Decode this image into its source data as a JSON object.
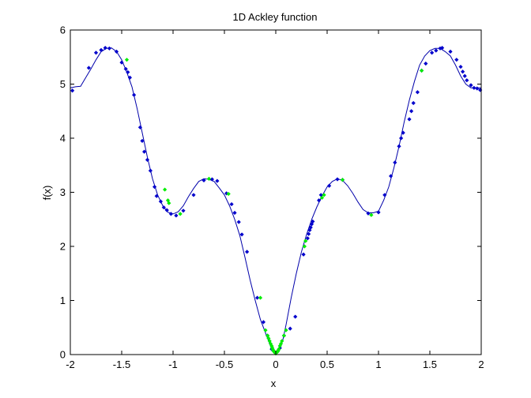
{
  "chart_data": {
    "type": "line",
    "title": "1D Ackley function",
    "xlabel": "x",
    "ylabel": "f(x)",
    "xlim": [
      -2,
      2
    ],
    "ylim": [
      0,
      6
    ],
    "xticks": [
      -2,
      -1.5,
      -1,
      -0.5,
      0,
      0.5,
      1,
      1.5,
      2
    ],
    "xtick_labels": [
      "-2",
      "-1.5",
      "-1",
      "-0.5",
      "0",
      "0.5",
      "1",
      "1.5",
      "2"
    ],
    "yticks": [
      0,
      1,
      2,
      3,
      4,
      5,
      6
    ],
    "ytick_labels": [
      "0",
      "1",
      "2",
      "3",
      "4",
      "5",
      "6"
    ],
    "grid": false,
    "colors": {
      "line": "#0000aa",
      "samples": "#0000cc",
      "selected": "#00ee00"
    },
    "series": [
      {
        "x": [
          -2,
          -1.95,
          -1.9,
          -1.85,
          -1.8,
          -1.75,
          -1.7,
          -1.65,
          -1.6,
          -1.55,
          -1.5,
          -1.45,
          -1.4,
          -1.35,
          -1.3,
          -1.25,
          -1.2,
          -1.15,
          -1.1,
          -1.05,
          -1.0,
          -0.95,
          -0.9,
          -0.85,
          -0.8,
          -0.75,
          -0.7,
          -0.65,
          -0.6,
          -0.55,
          -0.5,
          -0.45,
          -0.4,
          -0.35,
          -0.3,
          -0.25,
          -0.2,
          -0.15,
          -0.1,
          -0.07,
          -0.05,
          -0.03,
          -0.015,
          0,
          0.015,
          0.03,
          0.05,
          0.07,
          0.1,
          0.15,
          0.2,
          0.25,
          0.3,
          0.35,
          0.4,
          0.45,
          0.5,
          0.55,
          0.6,
          0.65,
          0.7,
          0.75,
          0.8,
          0.85,
          0.9,
          0.95,
          1.0,
          1.05,
          1.1,
          1.15,
          1.2,
          1.25,
          1.3,
          1.35,
          1.4,
          1.45,
          1.5,
          1.55,
          1.6,
          1.65,
          1.7,
          1.75,
          1.8,
          1.85,
          1.9,
          1.95,
          2.0
        ],
        "y": [
          4.93,
          4.95,
          4.96,
          5.12,
          5.28,
          5.45,
          5.6,
          5.66,
          5.67,
          5.6,
          5.45,
          5.22,
          4.95,
          4.55,
          4.1,
          3.65,
          3.25,
          2.95,
          2.75,
          2.63,
          2.6,
          2.64,
          2.75,
          2.92,
          3.07,
          3.2,
          3.25,
          3.24,
          3.2,
          3.08,
          2.95,
          2.75,
          2.5,
          2.2,
          1.8,
          1.38,
          1.0,
          0.65,
          0.4,
          0.25,
          0.15,
          0.07,
          0.03,
          0.0,
          0.03,
          0.07,
          0.15,
          0.28,
          0.55,
          1.05,
          1.5,
          1.9,
          2.22,
          2.5,
          2.73,
          2.93,
          3.1,
          3.2,
          3.25,
          3.22,
          3.12,
          2.98,
          2.82,
          2.68,
          2.62,
          2.62,
          2.65,
          2.85,
          3.1,
          3.45,
          3.85,
          4.3,
          4.7,
          5.05,
          5.35,
          5.52,
          5.62,
          5.66,
          5.66,
          5.6,
          5.52,
          5.35,
          5.15,
          5.0,
          4.93,
          4.93,
          4.93
        ]
      },
      {
        "x": [
          -1.98,
          -1.82,
          -1.75,
          -1.7,
          -1.66,
          -1.62,
          -1.55,
          -1.5,
          -1.46,
          -1.44,
          -1.42,
          -1.38,
          -1.32,
          -1.3,
          -1.28,
          -1.25,
          -1.22,
          -1.18,
          -1.16,
          -1.12,
          -1.09,
          -1.06,
          -1.02,
          -0.97,
          -0.9,
          -0.8,
          -0.7,
          -0.62,
          -0.57,
          -0.48,
          -0.43,
          -0.4,
          -0.36,
          -0.33,
          -0.28,
          -0.18,
          -0.12,
          -0.08,
          -0.04,
          0.04,
          0.08,
          0.14,
          0.19,
          0.27,
          0.31,
          0.32,
          0.33,
          0.34,
          0.35,
          0.36,
          0.42,
          0.44,
          0.52,
          0.6,
          0.65,
          0.9,
          1.0,
          1.06,
          1.12,
          1.16,
          1.2,
          1.22,
          1.24,
          1.3,
          1.32,
          1.34,
          1.38,
          1.42,
          1.46,
          1.52,
          1.56,
          1.6,
          1.62,
          1.7,
          1.76,
          1.8,
          1.82,
          1.84,
          1.86,
          1.9,
          1.93,
          1.96,
          1.99
        ],
        "y": [
          4.88,
          5.3,
          5.58,
          5.63,
          5.67,
          5.66,
          5.6,
          5.4,
          5.28,
          5.22,
          5.12,
          4.8,
          4.2,
          3.95,
          3.75,
          3.6,
          3.4,
          3.1,
          2.93,
          2.83,
          2.72,
          2.67,
          2.6,
          2.57,
          2.66,
          2.95,
          3.22,
          3.24,
          3.21,
          2.98,
          2.78,
          2.62,
          2.45,
          2.22,
          1.9,
          1.05,
          0.6,
          0.35,
          0.1,
          0.12,
          0.35,
          0.48,
          0.7,
          1.85,
          2.15,
          2.23,
          2.3,
          2.35,
          2.41,
          2.46,
          2.85,
          2.95,
          3.12,
          3.24,
          3.23,
          2.61,
          2.63,
          2.95,
          3.3,
          3.55,
          3.85,
          4.0,
          4.1,
          4.35,
          4.5,
          4.65,
          4.85,
          5.25,
          5.38,
          5.58,
          5.62,
          5.66,
          5.67,
          5.6,
          5.45,
          5.32,
          5.23,
          5.15,
          5.07,
          4.98,
          4.93,
          4.92,
          4.89
        ]
      },
      {
        "x": [
          -1.45,
          -1.08,
          -1.05,
          -1.04,
          -0.93,
          -0.65,
          -0.46,
          -0.15,
          -0.1,
          -0.08,
          -0.07,
          -0.06,
          -0.05,
          -0.04,
          -0.035,
          -0.03,
          -0.025,
          -0.02,
          -0.015,
          -0.01,
          -0.005,
          0,
          0.005,
          0.01,
          0.015,
          0.02,
          0.025,
          0.03,
          0.04,
          0.05,
          0.06,
          0.08,
          0.1,
          0.28,
          0.29,
          0.45,
          0.47,
          0.65,
          0.93,
          1.42
        ],
        "y": [
          5.45,
          3.05,
          2.85,
          2.8,
          2.6,
          3.25,
          2.97,
          1.05,
          0.45,
          0.35,
          0.3,
          0.25,
          0.2,
          0.16,
          0.13,
          0.1,
          0.08,
          0.06,
          0.05,
          0.04,
          0.03,
          0.02,
          0.03,
          0.04,
          0.05,
          0.06,
          0.08,
          0.1,
          0.16,
          0.2,
          0.25,
          0.35,
          0.45,
          2.0,
          2.1,
          2.9,
          2.95,
          3.23,
          2.58,
          5.25
        ]
      }
    ]
  }
}
